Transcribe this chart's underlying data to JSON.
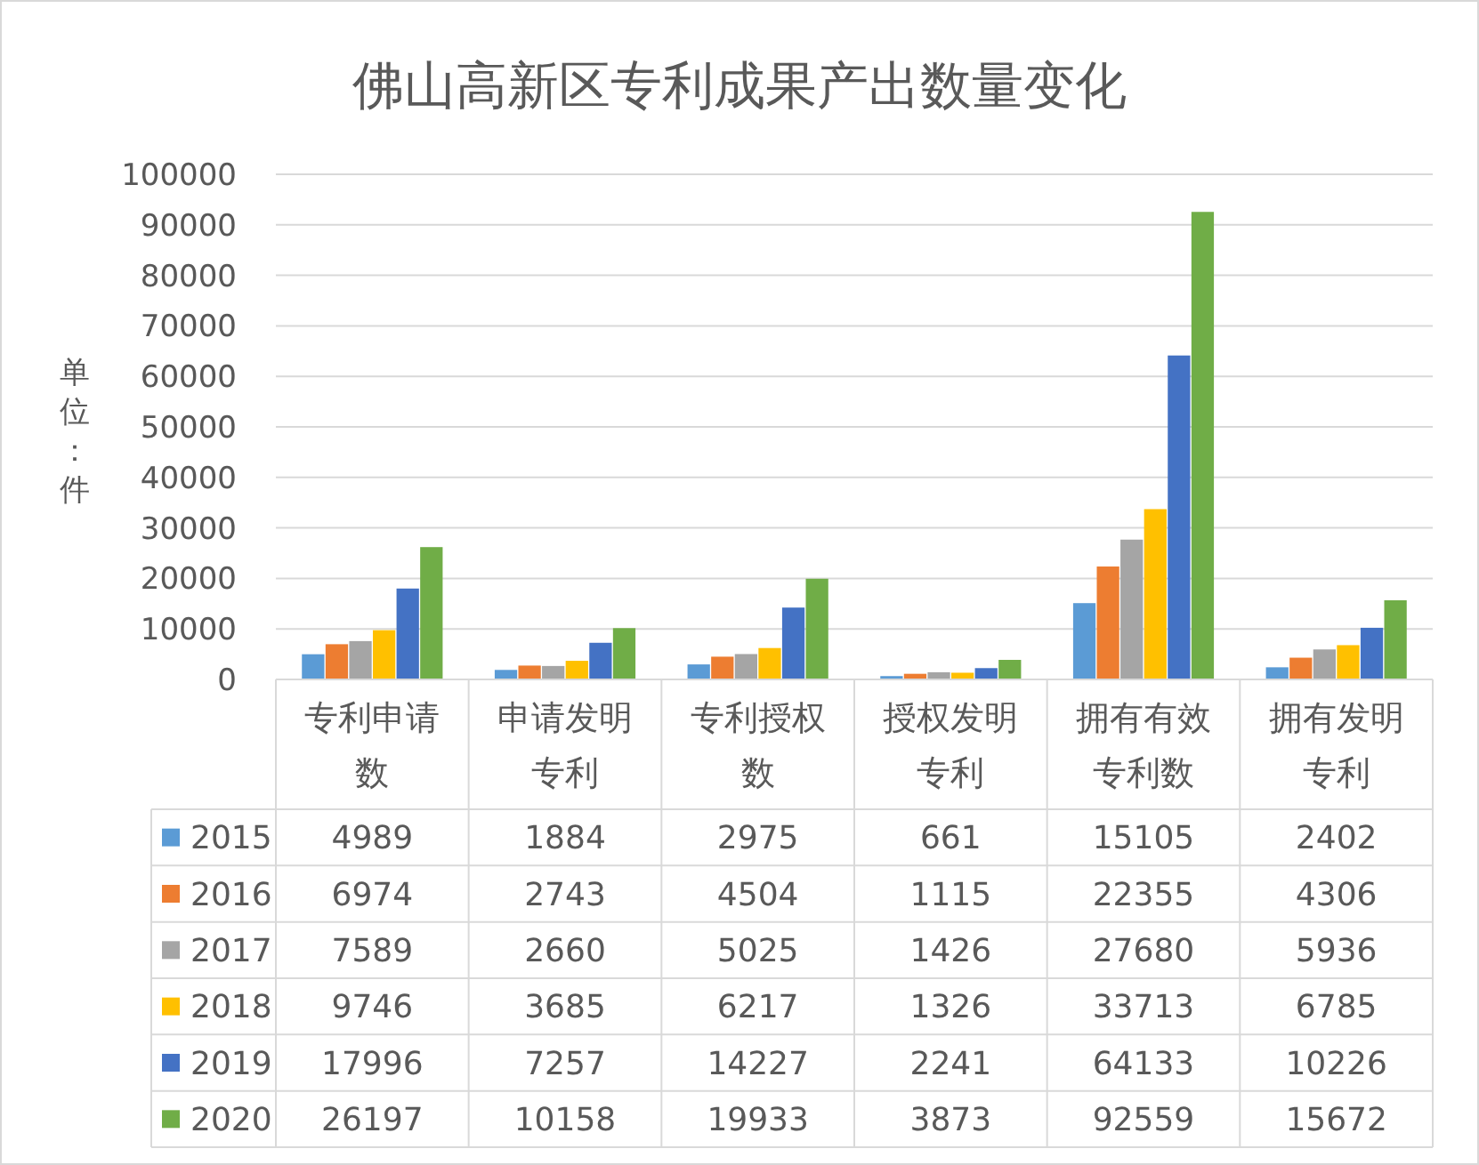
{
  "chart_data": {
    "type": "bar",
    "title": "佛山高新区专利成果产出数量变化",
    "ylabel": "单位：件",
    "categories": [
      "专利申请数",
      "申请发明专利",
      "专利授权数",
      "授权发明专利",
      "拥有有效专利数",
      "拥有发明专利"
    ],
    "series": [
      {
        "name": "2015",
        "color": "#5b9bd5",
        "values": [
          4989,
          1884,
          2975,
          661,
          15105,
          2402
        ]
      },
      {
        "name": "2016",
        "color": "#ed7d31",
        "values": [
          6974,
          2743,
          4504,
          1115,
          22355,
          4306
        ]
      },
      {
        "name": "2017",
        "color": "#a5a5a5",
        "values": [
          7589,
          2660,
          5025,
          1426,
          27680,
          5936
        ]
      },
      {
        "name": "2018",
        "color": "#ffc000",
        "values": [
          9746,
          3685,
          6217,
          1326,
          33713,
          6785
        ]
      },
      {
        "name": "2019",
        "color": "#4472c4",
        "values": [
          17996,
          7257,
          14227,
          2241,
          64133,
          10226
        ]
      },
      {
        "name": "2020",
        "color": "#70ad47",
        "values": [
          26197,
          10158,
          19933,
          3873,
          92559,
          15672
        ]
      }
    ],
    "ylim": [
      0,
      100000
    ],
    "yticks": [
      0,
      10000,
      20000,
      30000,
      40000,
      50000,
      60000,
      70000,
      80000,
      90000,
      100000
    ],
    "grid": "y",
    "legend": "bottom",
    "data_labels": true
  }
}
